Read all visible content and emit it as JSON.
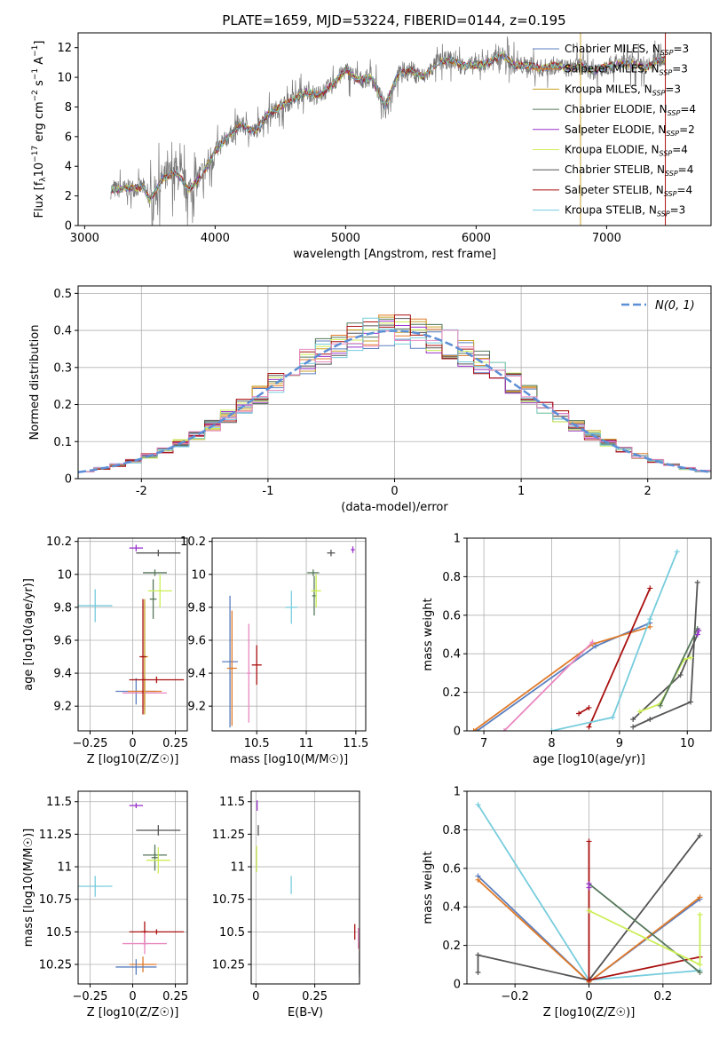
{
  "title": "PLATE=1659, MJD=53224, FIBERID=0144, z=0.195",
  "colors": {
    "chabrier_miles": "#5b7fbf",
    "salpeter_miles": "#e07b2a",
    "kroupa_miles": "#c9a227",
    "chabrier_elodie": "#55775a",
    "salpeter_elodie": "#9932cc",
    "kroupa_elodie": "#ccee55",
    "chabrier_stelib": "#555555",
    "salpeter_stelib": "#aa1111",
    "kroupa_stelib": "#77ccdd",
    "pink": "#e888c0",
    "normal_curve": "#5b8fd6"
  },
  "chart_data": [
    {
      "id": "spectrum",
      "type": "line",
      "xlabel": "wavelength [Angstrom, rest frame]",
      "ylabel": "Flux [f_λ 10^-17 erg cm^-2 s^-1 A^-1]",
      "xlim": [
        2950,
        7800
      ],
      "ylim": [
        0,
        13
      ],
      "xticks": [
        3000,
        4000,
        5000,
        6000,
        7000
      ],
      "yticks": [
        0,
        2,
        4,
        6,
        8,
        10,
        12
      ],
      "legend_position": "right",
      "legend": [
        {
          "label": "Chabrier MILES, N",
          "n": "3",
          "color_key": "chabrier_miles"
        },
        {
          "label": "Salpeter MILES, N",
          "n": "3",
          "color_key": "salpeter_miles"
        },
        {
          "label": "Kroupa MILES, N",
          "n": "3",
          "color_key": "kroupa_miles"
        },
        {
          "label": "Chabrier ELODIE, N",
          "n": "4",
          "color_key": "chabrier_elodie"
        },
        {
          "label": "Salpeter ELODIE, N",
          "n": "2",
          "color_key": "salpeter_elodie"
        },
        {
          "label": "Kroupa ELODIE, N",
          "n": "4",
          "color_key": "kroupa_elodie"
        },
        {
          "label": "Chabrier STELIB, N",
          "n": "4",
          "color_key": "chabrier_stelib"
        },
        {
          "label": "Salpeter STELIB, N",
          "n": "4",
          "color_key": "salpeter_stelib"
        },
        {
          "label": "Kroupa STELIB, N",
          "n": "3",
          "color_key": "kroupa_stelib"
        }
      ],
      "data_envelope": {
        "x": [
          3200,
          3450,
          3500,
          3600,
          3700,
          3800,
          3900,
          4000,
          4100,
          4200,
          4300,
          4400,
          4500,
          4600,
          4700,
          4800,
          4900,
          5000,
          5100,
          5200,
          5300,
          5400,
          5500,
          5600,
          5700,
          5800,
          5900,
          6000,
          6100,
          6200,
          6300,
          6400,
          6500,
          6600,
          6700,
          6800,
          6900,
          7000,
          7100,
          7200,
          7300,
          7400,
          7450
        ],
        "y": [
          2.4,
          2.6,
          1.7,
          3.2,
          3.6,
          2.4,
          3.4,
          5.0,
          6.0,
          6.8,
          6.3,
          7.5,
          8.0,
          8.5,
          9.0,
          8.8,
          9.5,
          10.5,
          9.8,
          10.0,
          8.0,
          10.2,
          10.5,
          10.0,
          11.0,
          11.2,
          10.8,
          10.8,
          11.0,
          11.5,
          10.8,
          10.8,
          10.6,
          10.8,
          10.6,
          10.8,
          10.4,
          10.8,
          10.9,
          10.9,
          10.6,
          11.2,
          11.2
        ]
      }
    },
    {
      "id": "residuals",
      "type": "line",
      "xlabel": "(data-model)/error",
      "ylabel": "Normed distribution",
      "xlim": [
        -2.5,
        2.5
      ],
      "ylim": [
        0,
        0.52
      ],
      "xticks": [
        -2,
        -1,
        0,
        1,
        2
      ],
      "yticks": [
        0.0,
        0.1,
        0.2,
        0.3,
        0.4,
        0.5
      ],
      "legend": [
        {
          "label": "N(0, 1)",
          "style": "dashed"
        }
      ],
      "normal_mean": 0,
      "normal_sigma": 1
    },
    {
      "id": "age_vs_Z",
      "type": "scatter",
      "xlabel": "Z [log10(Z/Z☉)]",
      "ylabel": "age  [log10(age/yr)]",
      "xlim": [
        -0.32,
        0.32
      ],
      "ylim": [
        9.05,
        10.22
      ],
      "xticks": [
        -0.25,
        0.0,
        0.25
      ],
      "yticks": [
        9.2,
        9.4,
        9.6,
        9.8,
        10.0,
        10.2
      ],
      "points": [
        {
          "c": "chabrier_miles",
          "x": 0.02,
          "xerr": 0.12,
          "y": 9.29,
          "yerr": 0.08
        },
        {
          "c": "salpeter_miles",
          "x": 0.07,
          "xerr": 0.1,
          "y": 9.29,
          "yerr": 0.08
        },
        {
          "c": "pink",
          "x": 0.07,
          "xerr": 0.13,
          "y": 9.28,
          "yerr": 0.1
        },
        {
          "c": "kroupa_miles",
          "x": 0.07,
          "xerr": 0.02,
          "y": 9.5,
          "yerr": 0.35
        },
        {
          "c": "salpeter_stelib",
          "x": 0.06,
          "xerr": 0.02,
          "y": 9.5,
          "yerr": 0.35
        },
        {
          "c": "salpeter_stelib",
          "x": 0.14,
          "xerr": 0.16,
          "y": 9.36,
          "yerr": 0.02
        },
        {
          "c": "salpeter_elodie",
          "x": 0.02,
          "xerr": 0.04,
          "y": 10.16,
          "yerr": 0.02
        },
        {
          "c": "chabrier_stelib",
          "x": 0.15,
          "xerr": 0.13,
          "y": 10.13,
          "yerr": 0.02
        },
        {
          "c": "chabrier_elodie",
          "x": 0.13,
          "xerr": 0.07,
          "y": 10.01,
          "yerr": 0.02
        },
        {
          "c": "chabrier_elodie",
          "x": 0.12,
          "xerr": 0.02,
          "y": 9.85,
          "yerr": 0.12
        },
        {
          "c": "kroupa_elodie",
          "x": 0.16,
          "xerr": 0.07,
          "y": 9.9,
          "yerr": 0.1
        },
        {
          "c": "kroupa_stelib",
          "x": -0.22,
          "xerr": 0.1,
          "y": 9.81,
          "yerr": 0.1
        }
      ]
    },
    {
      "id": "age_vs_mass",
      "type": "scatter",
      "xlabel": "mass [log10(M/M☉)]",
      "ylabel": "",
      "xlim": [
        10.05,
        11.6
      ],
      "ylim": [
        9.05,
        10.22
      ],
      "xticks": [
        10.5,
        11.0,
        11.5
      ],
      "yticks": [
        9.2,
        9.4,
        9.6,
        9.8,
        10.0,
        10.2
      ],
      "points": [
        {
          "c": "chabrier_miles",
          "x": 10.23,
          "xerr": 0.08,
          "y": 9.47,
          "yerr": 0.4
        },
        {
          "c": "salpeter_miles",
          "x": 10.25,
          "xerr": 0.05,
          "y": 9.43,
          "yerr": 0.35
        },
        {
          "c": "pink",
          "x": 10.42,
          "xerr": 0.02,
          "y": 9.4,
          "yerr": 0.3
        },
        {
          "c": "salpeter_stelib",
          "x": 10.5,
          "xerr": 0.05,
          "y": 9.45,
          "yerr": 0.12
        },
        {
          "c": "kroupa_stelib",
          "x": 10.85,
          "xerr": 0.06,
          "y": 9.8,
          "yerr": 0.1
        },
        {
          "c": "chabrier_elodie",
          "x": 11.07,
          "xerr": 0.06,
          "y": 10.01,
          "yerr": 0.02
        },
        {
          "c": "chabrier_elodie",
          "x": 11.08,
          "xerr": 0.02,
          "y": 9.87,
          "yerr": 0.12
        },
        {
          "c": "kroupa_elodie",
          "x": 11.1,
          "xerr": 0.05,
          "y": 9.9,
          "yerr": 0.1
        },
        {
          "c": "chabrier_stelib",
          "x": 11.25,
          "xerr": 0.04,
          "y": 10.13,
          "yerr": 0.02
        },
        {
          "c": "salpeter_elodie",
          "x": 11.47,
          "xerr": 0.02,
          "y": 10.15,
          "yerr": 0.02
        }
      ]
    },
    {
      "id": "weight_vs_age",
      "type": "line",
      "xlabel": "age  [log10(age/yr)]",
      "ylabel": "mass weight",
      "xlim": [
        6.75,
        10.35
      ],
      "ylim": [
        0,
        1
      ],
      "xticks": [
        7,
        8,
        9,
        10
      ],
      "yticks": [
        0.0,
        0.2,
        0.4,
        0.6,
        0.8,
        1.0
      ],
      "series": [
        {
          "c": "chabrier_miles",
          "x": [
            6.9,
            8.65,
            9.45
          ],
          "y": [
            0.0,
            0.44,
            0.56
          ]
        },
        {
          "c": "salpeter_miles",
          "x": [
            6.85,
            8.6,
            9.45
          ],
          "y": [
            0.0,
            0.45,
            0.54
          ]
        },
        {
          "c": "pink",
          "x": [
            7.3,
            8.6
          ],
          "y": [
            0.0,
            0.46
          ]
        },
        {
          "c": "salpeter_stelib",
          "x": [
            8.55,
            9.45
          ],
          "y": [
            0.02,
            0.74
          ]
        },
        {
          "c": "salpeter_stelib",
          "x": [
            8.4,
            8.55
          ],
          "y": [
            0.09,
            0.12
          ]
        },
        {
          "c": "kroupa_stelib",
          "x": [
            8.0,
            8.9,
            9.45,
            9.85
          ],
          "y": [
            0.0,
            0.07,
            0.58,
            0.93
          ]
        },
        {
          "c": "chabrier_stelib",
          "x": [
            9.2,
            9.45,
            10.05,
            10.15
          ],
          "y": [
            0.02,
            0.06,
            0.15,
            0.77
          ]
        },
        {
          "c": "chabrier_stelib",
          "x": [
            9.2,
            9.9,
            10.15
          ],
          "y": [
            0.06,
            0.29,
            0.5
          ]
        },
        {
          "c": "kroupa_elodie",
          "x": [
            9.3,
            9.6,
            9.95,
            10.05
          ],
          "y": [
            0.1,
            0.14,
            0.37,
            0.38
          ]
        },
        {
          "c": "chabrier_elodie",
          "x": [
            9.6,
            10.15
          ],
          "y": [
            0.13,
            0.53
          ]
        },
        {
          "c": "salpeter_elodie",
          "x": [
            10.15,
            10.17
          ],
          "y": [
            0.5,
            0.52
          ]
        }
      ]
    },
    {
      "id": "mass_vs_Z",
      "type": "scatter",
      "xlabel": "Z [log10(Z/Z☉)]",
      "ylabel": "mass [log10(M/M☉)]",
      "xlim": [
        -0.32,
        0.32
      ],
      "ylim": [
        10.1,
        11.58
      ],
      "xticks": [
        -0.25,
        0.0,
        0.25
      ],
      "yticks": [
        10.25,
        10.5,
        10.75,
        11.0,
        11.25,
        11.5
      ],
      "points": [
        {
          "c": "salpeter_elodie",
          "x": 0.02,
          "xerr": 0.04,
          "y": 11.47,
          "yerr": 0.02
        },
        {
          "c": "chabrier_stelib",
          "x": 0.15,
          "xerr": 0.13,
          "y": 11.28,
          "yerr": 0.04
        },
        {
          "c": "chabrier_elodie",
          "x": 0.13,
          "xerr": 0.07,
          "y": 11.09,
          "yerr": 0.02
        },
        {
          "c": "chabrier_elodie",
          "x": 0.13,
          "xerr": 0.02,
          "y": 11.07,
          "yerr": 0.1
        },
        {
          "c": "kroupa_elodie",
          "x": 0.15,
          "xerr": 0.07,
          "y": 11.05,
          "yerr": 0.1
        },
        {
          "c": "kroupa_stelib",
          "x": -0.22,
          "xerr": 0.1,
          "y": 10.85,
          "yerr": 0.08
        },
        {
          "c": "salpeter_stelib",
          "x": 0.14,
          "xerr": 0.16,
          "y": 10.5,
          "yerr": 0.02
        },
        {
          "c": "salpeter_stelib",
          "x": 0.07,
          "xerr": 0.02,
          "y": 10.5,
          "yerr": 0.08
        },
        {
          "c": "pink",
          "x": 0.07,
          "xerr": 0.13,
          "y": 10.41,
          "yerr": 0.02
        },
        {
          "c": "pink",
          "x": 0.07,
          "xerr": 0.02,
          "y": 10.41,
          "yerr": 0.08
        },
        {
          "c": "salpeter_miles",
          "x": 0.06,
          "xerr": 0.08,
          "y": 10.25,
          "yerr": 0.06
        },
        {
          "c": "chabrier_miles",
          "x": 0.02,
          "xerr": 0.12,
          "y": 10.23,
          "yerr": 0.06
        }
      ]
    },
    {
      "id": "mass_vs_ebv",
      "type": "scatter",
      "xlabel": "E(B-V)",
      "ylabel": "",
      "xlim": [
        -0.02,
        0.44
      ],
      "ylim": [
        10.1,
        11.58
      ],
      "xticks": [
        0.0,
        0.25
      ],
      "yticks": [
        10.25,
        10.5,
        10.75,
        11.0,
        11.25,
        11.5
      ],
      "points": [
        {
          "c": "salpeter_elodie",
          "x": 0.005,
          "xerr": 0.002,
          "y": 11.47,
          "yerr": 0.04
        },
        {
          "c": "chabrier_stelib",
          "x": 0.01,
          "xerr": 0.002,
          "y": 11.28,
          "yerr": 0.04
        },
        {
          "c": "kroupa_elodie",
          "x": 0.003,
          "xerr": 0.002,
          "y": 11.06,
          "yerr": 0.1
        },
        {
          "c": "kroupa_stelib",
          "x": 0.15,
          "xerr": 0.002,
          "y": 10.86,
          "yerr": 0.07
        },
        {
          "c": "salpeter_stelib",
          "x": 0.42,
          "xerr": 0.002,
          "y": 10.5,
          "yerr": 0.06
        },
        {
          "c": "pink",
          "x": 0.435,
          "xerr": 0.002,
          "y": 10.45,
          "yerr": 0.08
        },
        {
          "c": "salpeter_miles",
          "x": 0.44,
          "xerr": 0.002,
          "y": 10.3,
          "yerr": 0.12
        },
        {
          "c": "chabrier_miles",
          "x": 0.44,
          "xerr": 0.002,
          "y": 10.25,
          "yerr": 0.1
        }
      ]
    },
    {
      "id": "weight_vs_Z",
      "type": "line",
      "xlabel": "Z [log10(Z/Z☉)]",
      "ylabel": "mass weight",
      "xlim": [
        -0.33,
        0.33
      ],
      "ylim": [
        0,
        1
      ],
      "xticks": [
        -0.2,
        0.0,
        0.2
      ],
      "yticks": [
        0.0,
        0.2,
        0.4,
        0.6,
        0.8,
        1.0
      ],
      "series": [
        {
          "c": "kroupa_stelib",
          "x": [
            -0.3,
            0.0,
            0.3
          ],
          "y": [
            0.93,
            0.02,
            0.07
          ]
        },
        {
          "c": "chabrier_miles",
          "x": [
            -0.3,
            0.0,
            0.3
          ],
          "y": [
            0.56,
            0.01,
            0.44
          ]
        },
        {
          "c": "salpeter_miles",
          "x": [
            -0.3,
            0.0,
            0.3
          ],
          "y": [
            0.54,
            0.01,
            0.45
          ]
        },
        {
          "c": "chabrier_stelib",
          "x": [
            -0.3,
            0.0,
            0.3
          ],
          "y": [
            0.15,
            0.02,
            0.77
          ]
        },
        {
          "c": "chabrier_stelib",
          "x": [
            -0.3,
            -0.3
          ],
          "y": [
            0.06,
            0.15
          ]
        },
        {
          "c": "salpeter_stelib",
          "x": [
            0.0,
            0.0,
            0.3
          ],
          "y": [
            0.74,
            0.02,
            0.14
          ]
        },
        {
          "c": "chabrier_elodie",
          "x": [
            0.0,
            0.3
          ],
          "y": [
            0.52,
            0.06
          ]
        },
        {
          "c": "kroupa_elodie",
          "x": [
            0.0,
            0.3,
            0.3
          ],
          "y": [
            0.38,
            0.1,
            0.36
          ]
        },
        {
          "c": "salpeter_elodie",
          "x": [
            0.0,
            0.0
          ],
          "y": [
            0.5,
            0.52
          ]
        }
      ]
    }
  ]
}
